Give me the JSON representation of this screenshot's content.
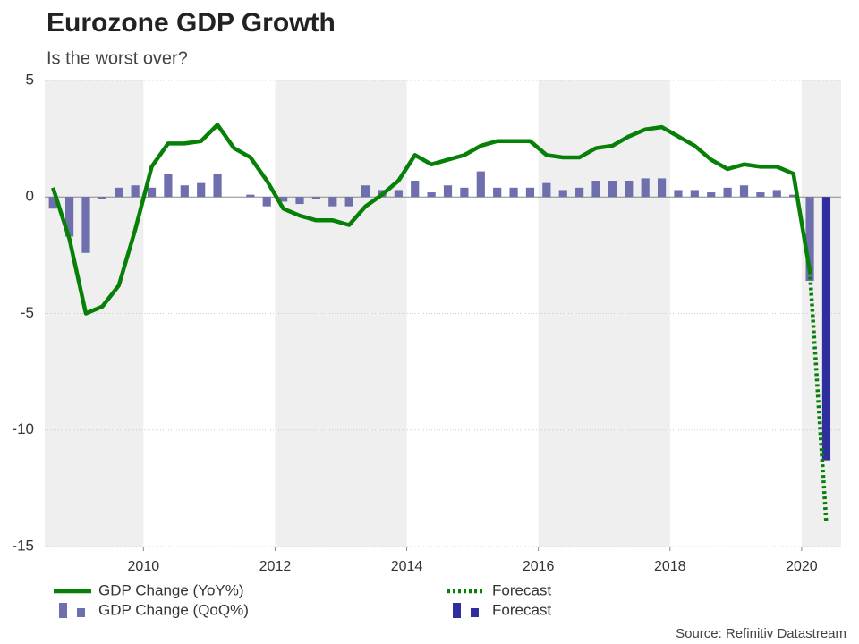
{
  "chart_data": {
    "type": "bar-line",
    "title": "Eurozone GDP Growth",
    "subtitle": "Is the worst over?",
    "source": "Source: Refinitiv Datastream",
    "x": [
      2008.625,
      2008.875,
      2009.125,
      2009.375,
      2009.625,
      2009.875,
      2010.125,
      2010.375,
      2010.625,
      2010.875,
      2011.125,
      2011.375,
      2011.625,
      2011.875,
      2012.125,
      2012.375,
      2012.625,
      2012.875,
      2013.125,
      2013.375,
      2013.625,
      2013.875,
      2014.125,
      2014.375,
      2014.625,
      2014.875,
      2015.125,
      2015.375,
      2015.625,
      2015.875,
      2016.125,
      2016.375,
      2016.625,
      2016.875,
      2017.125,
      2017.375,
      2017.625,
      2017.875,
      2018.125,
      2018.375,
      2018.625,
      2018.875,
      2019.125,
      2019.375,
      2019.625,
      2019.875,
      2020.125,
      2020.375
    ],
    "xlim": [
      2008.5,
      2020.6
    ],
    "xticks": [
      2010,
      2012,
      2014,
      2016,
      2018,
      2020
    ],
    "ylim": [
      -15,
      5
    ],
    "yticks": [
      5,
      0,
      -5,
      -10,
      -15
    ],
    "grid": true,
    "series": [
      {
        "name": "GDP Change (QoQ%)",
        "kind": "bar",
        "color": "#6f6fae",
        "values": [
          -0.5,
          -1.7,
          -2.4,
          -0.1,
          0.4,
          0.5,
          0.4,
          1.0,
          0.5,
          0.6,
          1.0,
          0.0,
          0.1,
          -0.4,
          -0.2,
          -0.3,
          -0.1,
          -0.4,
          -0.4,
          0.5,
          0.3,
          0.3,
          0.7,
          0.2,
          0.5,
          0.4,
          1.1,
          0.4,
          0.4,
          0.4,
          0.6,
          0.3,
          0.4,
          0.7,
          0.7,
          0.7,
          0.8,
          0.8,
          0.3,
          0.3,
          0.2,
          0.4,
          0.5,
          0.2,
          0.3,
          0.1,
          -3.6,
          null
        ]
      },
      {
        "name": "Forecast",
        "kind": "bar",
        "color": "#2e2e9e",
        "values": [
          null,
          null,
          null,
          null,
          null,
          null,
          null,
          null,
          null,
          null,
          null,
          null,
          null,
          null,
          null,
          null,
          null,
          null,
          null,
          null,
          null,
          null,
          null,
          null,
          null,
          null,
          null,
          null,
          null,
          null,
          null,
          null,
          null,
          null,
          null,
          null,
          null,
          null,
          null,
          null,
          null,
          null,
          null,
          null,
          null,
          null,
          null,
          -11.3
        ]
      },
      {
        "name": "GDP Change (YoY%)",
        "kind": "line",
        "color": "#078007",
        "values": [
          0.4,
          -1.8,
          -5.0,
          -4.7,
          -3.8,
          -1.4,
          1.3,
          2.3,
          2.3,
          2.4,
          3.1,
          2.1,
          1.7,
          0.7,
          -0.5,
          -0.8,
          -1.0,
          -1.0,
          -1.2,
          -0.4,
          0.1,
          0.7,
          1.8,
          1.4,
          1.6,
          1.8,
          2.2,
          2.4,
          2.4,
          2.4,
          1.8,
          1.7,
          1.7,
          2.1,
          2.2,
          2.6,
          2.9,
          3.0,
          2.6,
          2.2,
          1.6,
          1.2,
          1.4,
          1.3,
          1.3,
          1.0,
          -3.2,
          null
        ]
      },
      {
        "name": "Forecast",
        "kind": "dotted-line",
        "color": "#078007",
        "values": [
          null,
          null,
          null,
          null,
          null,
          null,
          null,
          null,
          null,
          null,
          null,
          null,
          null,
          null,
          null,
          null,
          null,
          null,
          null,
          null,
          null,
          null,
          null,
          null,
          null,
          null,
          null,
          null,
          null,
          null,
          null,
          null,
          null,
          null,
          null,
          null,
          null,
          null,
          null,
          null,
          null,
          null,
          null,
          null,
          null,
          null,
          -3.2,
          -14.0
        ]
      }
    ]
  }
}
